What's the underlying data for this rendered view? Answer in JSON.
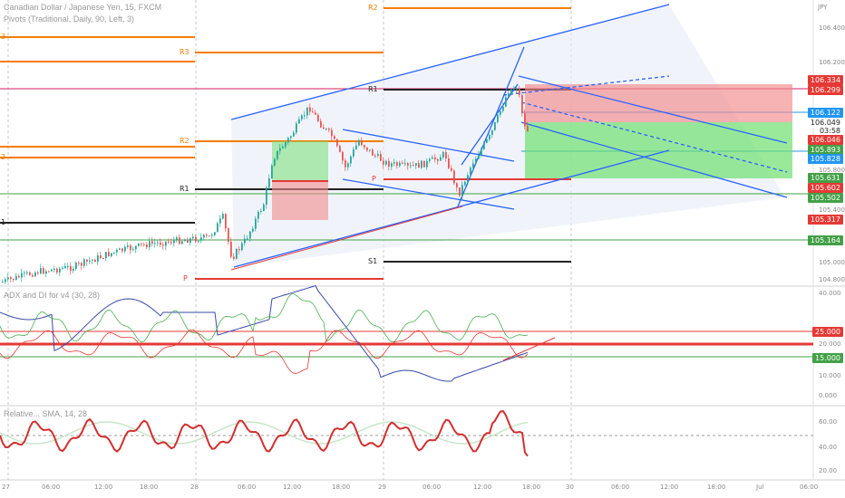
{
  "header": {
    "title": "Canadian Dollar / Japanese Yen, 15, FXCM",
    "pivots_label": "Pivots (Traditional, Daily, 90, Left, 3)",
    "currency": "JPY"
  },
  "indicators": {
    "adx_label": "ADX and DI for v4 (30, 28)",
    "rsi_label": "Relative... SMA, 14, 28"
  },
  "pivot_levels": {
    "r3": "R3",
    "r2": "R2",
    "r1": "R1",
    "p": "P",
    "s1": "S1",
    "r2_top": "R2",
    "r1_mid": "R1",
    "p_mid": "P",
    "left_3": "3",
    "left_2": "2",
    "left_1": "1"
  },
  "price_axis": {
    "ticks": [
      "106.400",
      "106.200",
      "105.800",
      "105.600",
      "105.400",
      "105.200",
      "105.000",
      "104.800"
    ],
    "tags": [
      {
        "value": "106.334",
        "color": "#e53935",
        "text_color": "#ffffff"
      },
      {
        "value": "106.299",
        "color": "#e53935",
        "text_color": "#ffffff"
      },
      {
        "value": "106.122",
        "color": "#2196f3",
        "text_color": "#ffffff"
      },
      {
        "value": "106.049",
        "color": "#ffffff",
        "text_color": "#222222"
      },
      {
        "value": "03:58",
        "color": "#ffffff",
        "text_color": "#222222"
      },
      {
        "value": "106.046",
        "color": "#e53935",
        "text_color": "#ffffff"
      },
      {
        "value": "105.893",
        "color": "#43a047",
        "text_color": "#ffffff"
      },
      {
        "value": "105.828",
        "color": "#2196f3",
        "text_color": "#ffffff"
      },
      {
        "value": "105.631",
        "color": "#43a047",
        "text_color": "#ffffff"
      },
      {
        "value": "105.602",
        "color": "#e53935",
        "text_color": "#ffffff"
      },
      {
        "value": "105.502",
        "color": "#43a047",
        "text_color": "#ffffff"
      },
      {
        "value": "105.317",
        "color": "#e53935",
        "text_color": "#ffffff"
      },
      {
        "value": "105.164",
        "color": "#43a047",
        "text_color": "#ffffff"
      }
    ]
  },
  "adx_axis": {
    "ticks": [
      "40.000",
      "20.000",
      "10.000",
      "0.000"
    ],
    "tags": [
      {
        "value": "25.000",
        "color": "#e53935"
      },
      {
        "value": "15.000",
        "color": "#43a047"
      }
    ]
  },
  "rsi_axis": {
    "ticks": [
      "60.00",
      "40.00",
      "20.00"
    ]
  },
  "time_axis": {
    "labels": [
      "27",
      "06:00",
      "12:00",
      "18:00",
      "28",
      "06:00",
      "12:00",
      "18:00",
      "29",
      "06:00",
      "12:00",
      "18:00",
      "30",
      "06:00",
      "12:00",
      "18:00",
      "Jul",
      "06:00"
    ]
  },
  "colors": {
    "up": "#26a69a",
    "down": "#ef5350",
    "trend": "#2962ff",
    "pivot_orange": "#f57c00"
  }
}
